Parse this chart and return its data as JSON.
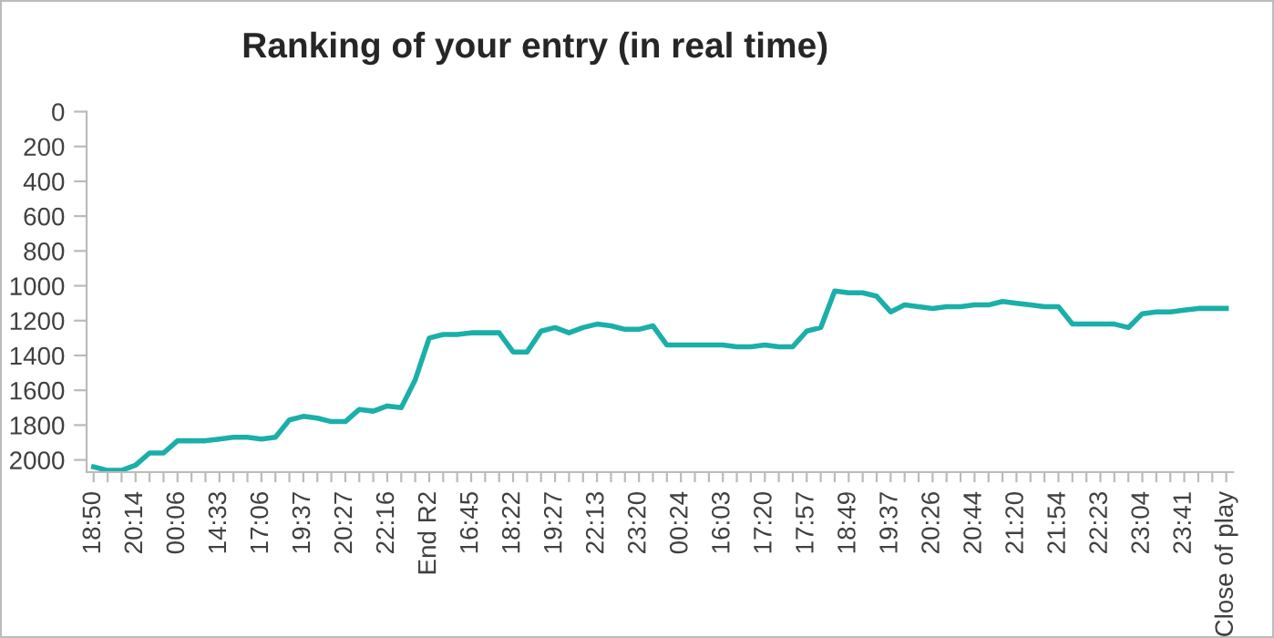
{
  "chart_data": {
    "type": "line",
    "title": "Ranking of your entry (in real time)",
    "categories": [
      "18:50",
      null,
      null,
      "20:14",
      null,
      null,
      "00:06",
      null,
      null,
      "14:33",
      null,
      null,
      "17:06",
      null,
      null,
      "19:37",
      null,
      null,
      "20:27",
      null,
      null,
      "22:16",
      null,
      null,
      "End R2",
      null,
      null,
      "16:45",
      null,
      null,
      "18:22",
      null,
      null,
      "19:27",
      null,
      null,
      "22:13",
      null,
      null,
      "23:20",
      null,
      null,
      "00:24",
      null,
      null,
      "16:03",
      null,
      null,
      "17:20",
      null,
      null,
      "17:57",
      null,
      null,
      "18:49",
      null,
      null,
      "19:37",
      null,
      null,
      "20:26",
      null,
      null,
      "20:44",
      null,
      null,
      "21:20",
      null,
      null,
      "21:54",
      null,
      null,
      "22:23",
      null,
      null,
      "23:04",
      null,
      null,
      "23:41",
      null,
      null,
      "Close of play"
    ],
    "series": [
      {
        "color": "#1aafa8",
        "values": [
          2040,
          2060,
          2060,
          2030,
          1960,
          1960,
          1890,
          1890,
          1890,
          1880,
          1870,
          1870,
          1880,
          1870,
          1770,
          1750,
          1760,
          1780,
          1780,
          1710,
          1720,
          1690,
          1700,
          1540,
          1300,
          1280,
          1280,
          1270,
          1270,
          1270,
          1380,
          1380,
          1260,
          1240,
          1270,
          1240,
          1220,
          1230,
          1250,
          1250,
          1230,
          1340,
          1340,
          1340,
          1340,
          1340,
          1350,
          1350,
          1340,
          1350,
          1350,
          1260,
          1240,
          1030,
          1040,
          1040,
          1060,
          1150,
          1110,
          1120,
          1130,
          1120,
          1120,
          1110,
          1110,
          1090,
          1100,
          1110,
          1120,
          1120,
          1220,
          1220,
          1220,
          1220,
          1240,
          1160,
          1150,
          1150,
          1140,
          1130,
          1130,
          1130
        ]
      }
    ],
    "ylim": [
      2070,
      0
    ],
    "yticks": [
      0,
      200,
      400,
      600,
      800,
      1000,
      1200,
      1400,
      1600,
      1800,
      2000
    ],
    "grid": false,
    "marker": "none",
    "line_style": "solid"
  }
}
